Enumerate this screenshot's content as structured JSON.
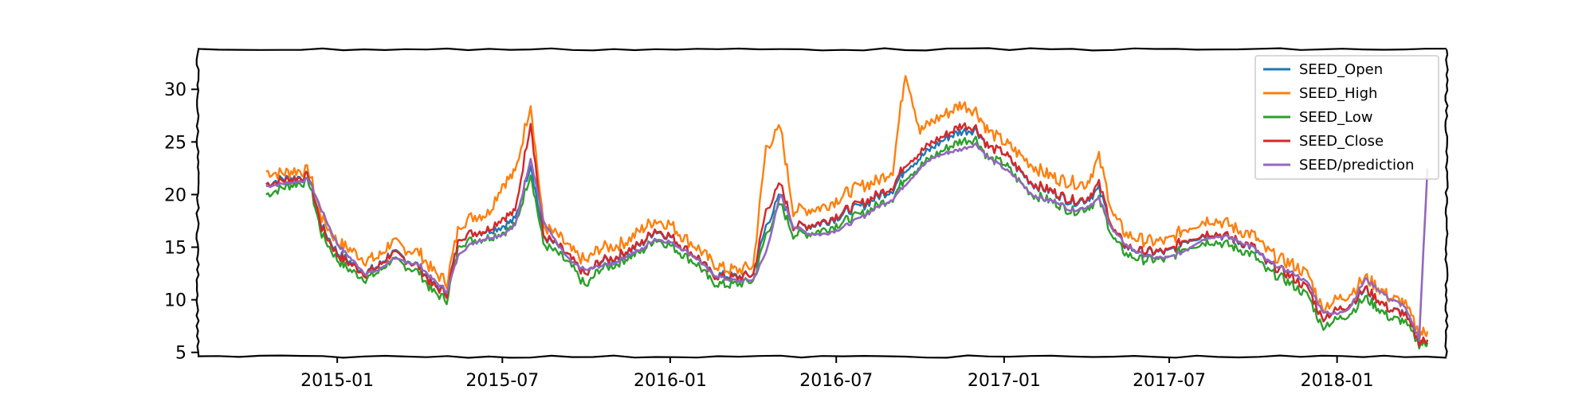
{
  "chart_data": {
    "type": "line",
    "title": "",
    "xlabel": "",
    "ylabel": "",
    "xlim": [
      "2014-08-01",
      "2018-05-01"
    ],
    "ylim": [
      4.6,
      33.8
    ],
    "x_ticks": [
      "2015-01",
      "2015-07",
      "2016-01",
      "2016-07",
      "2017-01",
      "2017-07",
      "2018-01"
    ],
    "y_ticks": [
      "5",
      "10",
      "15",
      "20",
      "25",
      "30"
    ],
    "legend_position": "top-right",
    "grid": false,
    "style": "xkcd",
    "x": [
      "2014-10-15",
      "2014-11-01",
      "2014-11-15",
      "2014-12-01",
      "2014-12-15",
      "2015-01-01",
      "2015-01-15",
      "2015-02-01",
      "2015-02-15",
      "2015-03-01",
      "2015-03-15",
      "2015-04-01",
      "2015-04-15",
      "2015-05-01",
      "2015-05-15",
      "2015-06-01",
      "2015-06-15",
      "2015-07-01",
      "2015-07-15",
      "2015-08-01",
      "2015-08-15",
      "2015-09-01",
      "2015-09-15",
      "2015-10-01",
      "2015-10-15",
      "2015-11-01",
      "2015-11-15",
      "2015-12-01",
      "2015-12-15",
      "2016-01-01",
      "2016-01-15",
      "2016-02-01",
      "2016-02-15",
      "2016-03-01",
      "2016-03-15",
      "2016-04-01",
      "2016-04-15",
      "2016-05-01",
      "2016-05-15",
      "2016-06-01",
      "2016-06-15",
      "2016-07-01",
      "2016-07-15",
      "2016-08-01",
      "2016-08-15",
      "2016-09-01",
      "2016-09-15",
      "2016-10-01",
      "2016-10-15",
      "2016-11-01",
      "2016-11-15",
      "2016-12-01",
      "2016-12-15",
      "2017-01-01",
      "2017-01-15",
      "2017-02-01",
      "2017-02-15",
      "2017-03-01",
      "2017-03-15",
      "2017-04-01",
      "2017-04-15",
      "2017-05-01",
      "2017-05-15",
      "2017-06-01",
      "2017-06-15",
      "2017-07-01",
      "2017-07-15",
      "2017-08-01",
      "2017-08-15",
      "2017-09-01",
      "2017-09-15",
      "2017-10-01",
      "2017-10-15",
      "2017-11-01",
      "2017-11-15",
      "2017-12-01",
      "2017-12-15",
      "2018-01-01",
      "2018-01-15",
      "2018-02-01",
      "2018-02-15",
      "2018-03-01",
      "2018-03-15",
      "2018-04-01",
      "2018-04-10"
    ],
    "series": [
      {
        "name": "SEED_Open",
        "color": "#1f77b4",
        "values": [
          21.0,
          21.5,
          21.6,
          21.8,
          17.0,
          14.5,
          13.6,
          12.6,
          13.2,
          14.5,
          14.0,
          13.2,
          11.5,
          10.8,
          16.0,
          16.4,
          16.6,
          17.0,
          17.6,
          23.0,
          16.0,
          15.0,
          13.8,
          12.3,
          13.6,
          13.9,
          14.6,
          15.3,
          16.6,
          16.0,
          15.0,
          14.0,
          12.5,
          12.3,
          12.2,
          12.4,
          17.0,
          20.0,
          17.0,
          17.0,
          17.3,
          17.8,
          18.5,
          19.0,
          19.8,
          20.5,
          22.5,
          23.5,
          24.5,
          25.5,
          26.0,
          26.2,
          24.5,
          24.0,
          22.5,
          21.0,
          20.5,
          20.0,
          19.3,
          19.5,
          20.5,
          16.5,
          15.0,
          14.5,
          14.5,
          14.5,
          15.5,
          16.0,
          16.3,
          16.0,
          15.5,
          15.0,
          13.5,
          12.8,
          12.0,
          11.0,
          8.3,
          9.0,
          9.5,
          11.0,
          10.0,
          9.0,
          8.8,
          6.0,
          6.2
        ]
      },
      {
        "name": "SEED_High",
        "color": "#ff7f0e",
        "values": [
          22.2,
          22.0,
          22.3,
          22.2,
          17.8,
          15.5,
          14.8,
          13.8,
          14.0,
          15.5,
          14.9,
          14.5,
          12.8,
          11.7,
          17.2,
          18.0,
          18.2,
          21.0,
          22.0,
          28.8,
          17.0,
          16.0,
          14.6,
          13.6,
          14.9,
          15.1,
          15.6,
          16.7,
          17.6,
          17.2,
          16.0,
          14.9,
          13.6,
          12.9,
          12.8,
          13.2,
          24.5,
          26.3,
          18.5,
          18.6,
          18.8,
          19.5,
          20.3,
          20.9,
          21.3,
          22.4,
          31.8,
          26.0,
          27.0,
          27.8,
          28.6,
          28.0,
          26.0,
          25.0,
          24.0,
          22.8,
          22.0,
          21.5,
          21.2,
          21.0,
          23.5,
          18.0,
          16.2,
          15.7,
          15.5,
          15.6,
          16.6,
          17.3,
          17.7,
          17.3,
          16.6,
          16.2,
          14.7,
          13.8,
          13.3,
          12.3,
          9.3,
          10.0,
          10.6,
          12.1,
          11.2,
          10.1,
          9.8,
          6.8,
          7.0
        ]
      },
      {
        "name": "SEED_Low",
        "color": "#2ca02c",
        "values": [
          20.0,
          20.6,
          21.0,
          21.2,
          16.2,
          13.8,
          12.8,
          12.0,
          12.6,
          13.8,
          13.3,
          12.6,
          10.8,
          10.0,
          15.4,
          15.7,
          15.9,
          16.4,
          17.0,
          22.1,
          15.3,
          14.3,
          13.1,
          11.2,
          12.9,
          13.3,
          14.0,
          14.6,
          15.8,
          15.2,
          14.3,
          13.3,
          11.7,
          11.4,
          11.5,
          11.8,
          16.2,
          19.1,
          16.2,
          16.3,
          16.6,
          17.1,
          17.7,
          18.2,
          19.0,
          19.7,
          21.7,
          22.7,
          23.6,
          24.5,
          25.1,
          25.3,
          23.4,
          23.0,
          21.5,
          20.0,
          19.6,
          19.1,
          18.4,
          18.7,
          19.5,
          15.8,
          14.3,
          13.8,
          13.8,
          13.8,
          14.8,
          15.3,
          15.6,
          15.3,
          14.8,
          14.3,
          12.8,
          12.1,
          11.3,
          10.3,
          7.5,
          8.1,
          8.7,
          10.2,
          9.2,
          8.2,
          8.0,
          5.8,
          5.9
        ]
      },
      {
        "name": "SEED_Close",
        "color": "#d62728",
        "values": [
          21.0,
          21.3,
          21.5,
          21.7,
          16.8,
          14.3,
          13.4,
          12.5,
          13.1,
          14.4,
          13.9,
          13.1,
          11.4,
          10.6,
          16.0,
          16.4,
          16.7,
          17.8,
          18.3,
          27.0,
          16.1,
          15.1,
          13.8,
          12.3,
          13.7,
          14.0,
          14.7,
          15.4,
          16.7,
          16.1,
          15.0,
          14.0,
          12.4,
          12.1,
          12.1,
          12.4,
          18.5,
          21.0,
          17.0,
          17.1,
          17.4,
          18.0,
          18.7,
          19.3,
          20.0,
          20.8,
          23.0,
          24.0,
          25.0,
          25.8,
          26.6,
          26.4,
          24.5,
          24.0,
          22.6,
          21.1,
          20.6,
          20.1,
          19.5,
          19.6,
          21.0,
          16.6,
          15.1,
          14.6,
          14.6,
          14.6,
          15.6,
          16.1,
          16.4,
          16.1,
          15.6,
          15.1,
          13.6,
          12.8,
          12.0,
          11.0,
          8.3,
          9.0,
          9.6,
          11.1,
          10.0,
          9.0,
          8.7,
          6.0,
          6.2
        ]
      },
      {
        "name": "SEED/prediction",
        "color": "#9467bd",
        "values": [
          20.8,
          21.0,
          21.2,
          21.4,
          18.5,
          15.3,
          14.0,
          12.5,
          12.8,
          13.8,
          13.7,
          13.3,
          12.0,
          10.8,
          14.5,
          15.5,
          15.9,
          16.2,
          17.0,
          23.5,
          17.5,
          15.0,
          13.5,
          12.8,
          13.2,
          13.5,
          14.2,
          14.8,
          15.8,
          15.5,
          14.8,
          13.8,
          12.5,
          12.0,
          11.8,
          11.9,
          14.5,
          20.0,
          17.0,
          16.3,
          16.2,
          16.6,
          17.2,
          18.0,
          18.8,
          19.6,
          21.0,
          22.5,
          23.5,
          24.0,
          24.3,
          24.8,
          23.5,
          22.5,
          21.5,
          20.0,
          19.5,
          19.3,
          18.5,
          18.8,
          19.6,
          16.5,
          15.2,
          14.3,
          14.0,
          14.0,
          14.5,
          15.5,
          16.0,
          16.0,
          15.6,
          15.0,
          13.8,
          13.0,
          12.5,
          11.5,
          9.0,
          8.6,
          9.3,
          12.0,
          11.0,
          10.0,
          9.5,
          6.3,
          22.5
        ]
      }
    ]
  }
}
